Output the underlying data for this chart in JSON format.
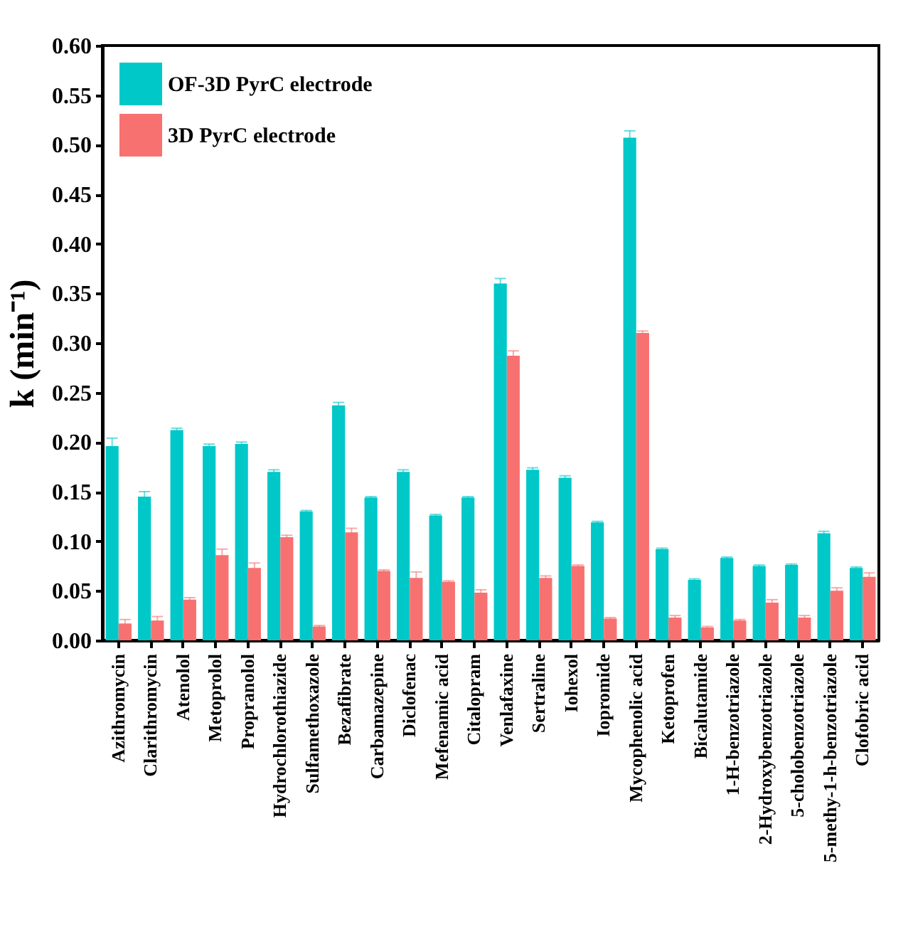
{
  "chart_data": {
    "type": "bar",
    "ylabel": "k (min⁻¹)",
    "categories": [
      "Azithromycin",
      "Clarithromycin",
      "Atenolol",
      "Metoprolol",
      "Propranolol",
      "Hydrochlorothiazide",
      "Sulfamethoxazole",
      "Bezafibrate",
      "Carbamazepine",
      "Diclofenac",
      "Mefenamic acid",
      "Citalopram",
      "Venlafaxine",
      "Sertraline",
      "Iohexol",
      "Iopromide",
      "Mycophenolic acid",
      "Ketoprofen",
      "Bicalutamide",
      "1-H-benzotriazole",
      "2-Hydroxybenzotriazole",
      "5-cholobenzotriazole",
      "5-methy-1-h-benzotriazole",
      "Clofobric acid"
    ],
    "series": [
      {
        "name": "OF-3D PyrC electrode",
        "color": "#00c8c8",
        "values": [
          0.196,
          0.145,
          0.212,
          0.196,
          0.198,
          0.17,
          0.13,
          0.237,
          0.144,
          0.17,
          0.126,
          0.144,
          0.36,
          0.172,
          0.164,
          0.119,
          0.507,
          0.092,
          0.061,
          0.083,
          0.075,
          0.076,
          0.108,
          0.073
        ],
        "errors": [
          0.008,
          0.005,
          0.002,
          0.002,
          0.002,
          0.002,
          0.001,
          0.003,
          0.001,
          0.002,
          0.001,
          0.001,
          0.005,
          0.002,
          0.002,
          0.001,
          0.007,
          0.001,
          0.001,
          0.001,
          0.001,
          0.001,
          0.002,
          0.001
        ]
      },
      {
        "name": "3D PyrC electrode",
        "color": "#f87171",
        "values": [
          0.017,
          0.02,
          0.041,
          0.086,
          0.073,
          0.104,
          0.014,
          0.109,
          0.07,
          0.063,
          0.059,
          0.048,
          0.287,
          0.063,
          0.075,
          0.022,
          0.31,
          0.023,
          0.013,
          0.02,
          0.038,
          0.023,
          0.05,
          0.064
        ],
        "errors": [
          0.004,
          0.004,
          0.002,
          0.006,
          0.005,
          0.002,
          0.001,
          0.004,
          0.001,
          0.006,
          0.001,
          0.003,
          0.005,
          0.002,
          0.001,
          0.001,
          0.002,
          0.002,
          0.001,
          0.001,
          0.003,
          0.002,
          0.003,
          0.004
        ]
      }
    ],
    "ylim": [
      0,
      0.6
    ],
    "yticks": [
      {
        "value": 0,
        "label": "0.00"
      },
      {
        "value": 0.05,
        "label": "0.05"
      },
      {
        "value": 0.1,
        "label": "0.10"
      },
      {
        "value": 0.15,
        "label": "0.15"
      },
      {
        "value": 0.2,
        "label": "0.20"
      },
      {
        "value": 0.25,
        "label": "0.25"
      },
      {
        "value": 0.3,
        "label": "0.30"
      },
      {
        "value": 0.35,
        "label": "0.35"
      },
      {
        "value": 0.4,
        "label": "0.40"
      },
      {
        "value": 0.45,
        "label": "0.45"
      },
      {
        "value": 0.5,
        "label": "0.50"
      },
      {
        "value": 0.55,
        "label": "0.55"
      },
      {
        "value": 0.6,
        "label": "0.60"
      }
    ],
    "legend": "top left"
  }
}
